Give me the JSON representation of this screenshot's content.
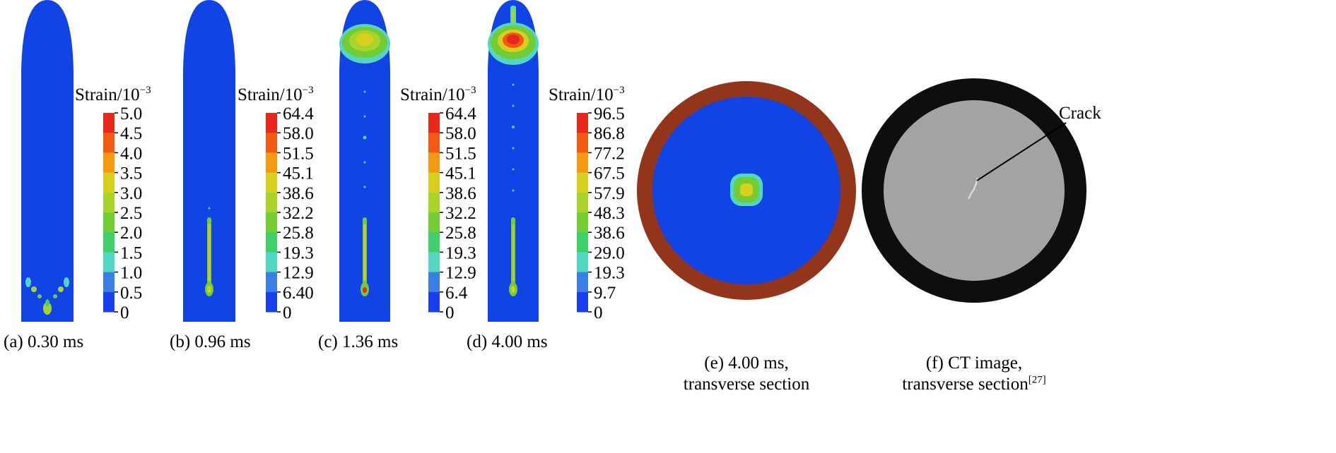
{
  "strain_label_prefix": "Strain/10",
  "strain_label_exp": "−3",
  "panels": [
    {
      "caption": "(a) 0.30 ms",
      "ticks": [
        "5.0",
        "4.5",
        "4.0",
        "3.5",
        "3.0",
        "2.5",
        "2.0",
        "1.5",
        "1.0",
        "0.5",
        "0"
      ]
    },
    {
      "caption": "(b) 0.96 ms",
      "ticks": [
        "64.4",
        "58.0",
        "51.5",
        "45.1",
        "38.6",
        "32.2",
        "25.8",
        "19.3",
        "12.9",
        "6.40",
        "0"
      ]
    },
    {
      "caption": "(c) 1.36 ms",
      "ticks": [
        "64.4",
        "58.0",
        "51.5",
        "45.1",
        "38.6",
        "32.2",
        "25.8",
        "19.3",
        "12.9",
        "6.4",
        "0"
      ]
    },
    {
      "caption": "(d) 4.00 ms",
      "ticks": [
        "96.5",
        "86.8",
        "77.2",
        "67.5",
        "57.9",
        "48.3",
        "38.6",
        "29.0",
        "19.3",
        "9.7",
        "0"
      ]
    }
  ],
  "section_e": {
    "caption_line1": "(e) 4.00 ms,",
    "caption_line2": "transverse section"
  },
  "section_f": {
    "caption_line1": "(f) CT image,",
    "caption_line2": "transverse section",
    "ref": "[27]",
    "crack_label": "Crack"
  },
  "colors": {
    "field_blue": "#1144e6",
    "scale": [
      "#e8281a",
      "#f25a14",
      "#f39a12",
      "#d8cf1c",
      "#a8d42a",
      "#72cc34",
      "#3fd06a",
      "#52d7c2",
      "#3a7fe6",
      "#1a3ff0"
    ],
    "ring_brown": "#93351a",
    "ct_outer": "#0e0e0e",
    "ct_inner": "#a3a3a3"
  }
}
